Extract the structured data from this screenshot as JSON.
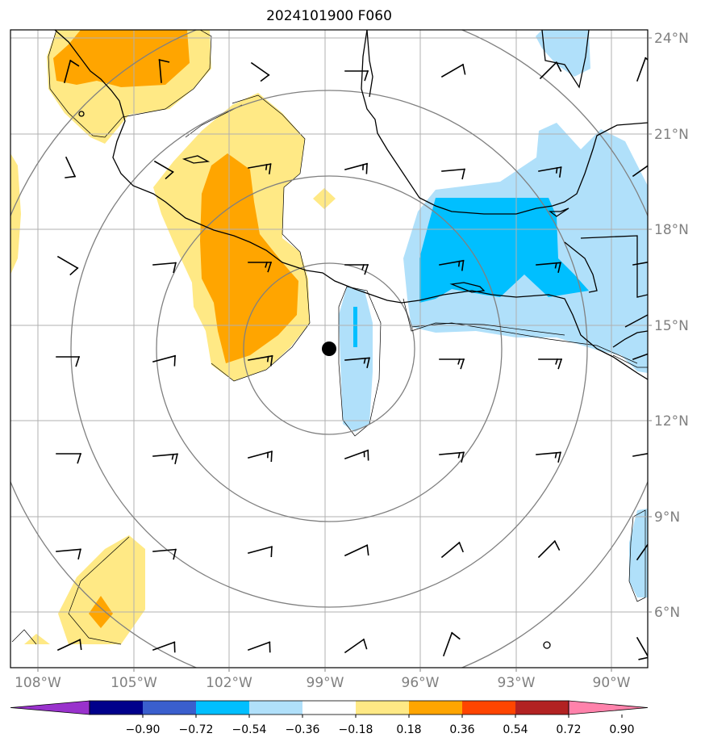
{
  "title": "2024101900 F060",
  "lon_ticks": [
    "108°W",
    "105°W",
    "102°W",
    "99°W",
    "96°W",
    "93°W",
    "90°W"
  ],
  "lat_ticks": [
    "24°N",
    "21°N",
    "18°N",
    "15°N",
    "12°N",
    "9°N",
    "6°N"
  ],
  "colorbar": {
    "labels": [
      "−0.90",
      "−0.72",
      "−0.54",
      "−0.36",
      "−0.18",
      "0.18",
      "0.36",
      "0.54",
      "0.72",
      "0.90"
    ],
    "colors": [
      "#9932cc",
      "#00008b",
      "#3a5fcd",
      "#00bfff",
      "#b0e0fa",
      "#ffffff",
      "#ffe985",
      "#ffa500",
      "#ff4500",
      "#b22222",
      "#ff82ab"
    ]
  },
  "storm_center": {
    "lon": -98.9,
    "lat": 14.3
  },
  "colors": {
    "grid": "#b0b0b0",
    "rings": "#808080",
    "coast": "#000000"
  }
}
